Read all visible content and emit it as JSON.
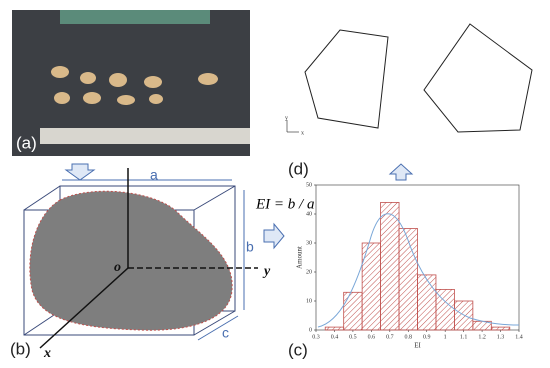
{
  "panel_labels": [
    "(a)",
    "(b)",
    "(c)",
    "(d)"
  ],
  "dimensions": {
    "a": "a",
    "b": "b",
    "c": "c"
  },
  "axes": {
    "x": "x",
    "y": "y",
    "origin": "o"
  },
  "equation": "EI = b / a",
  "inset_axes": {
    "x": "x",
    "y": "y"
  },
  "chart_data": {
    "type": "histogram",
    "x_label": "EI",
    "y_label": "Amount",
    "bins": [
      0.35,
      0.45,
      0.55,
      0.65,
      0.75,
      0.85,
      0.95,
      1.05,
      1.15,
      1.25,
      1.35
    ],
    "values": [
      1,
      13,
      30,
      44,
      35,
      19,
      14,
      10,
      3,
      1
    ],
    "color": "#c0504d",
    "xlim": [
      0.3,
      1.4
    ],
    "xticks": [
      0.3,
      0.4,
      0.5,
      0.6,
      0.7,
      0.8,
      0.9,
      1.0,
      1.1,
      1.2,
      1.3,
      1.4
    ],
    "ylim": [
      0,
      50
    ],
    "yticks": [
      0,
      10,
      20,
      30,
      40,
      50
    ]
  }
}
